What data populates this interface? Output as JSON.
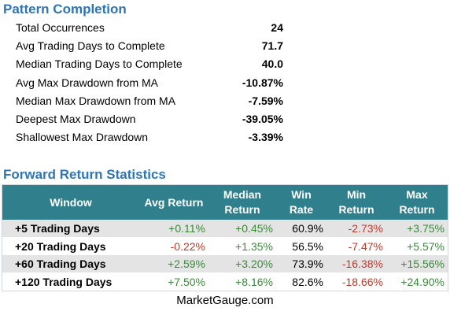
{
  "pattern_completion": {
    "title": "Pattern Completion",
    "rows": [
      {
        "label": "Total Occurrences",
        "value": "24"
      },
      {
        "label": "Avg Trading Days to Complete",
        "value": "71.7"
      },
      {
        "label": "Median Trading Days to Complete",
        "value": "40.0"
      },
      {
        "label": "Avg Max Drawdown from MA",
        "value": "-10.87%"
      },
      {
        "label": "Median Max Drawdown from MA",
        "value": "-7.59%"
      },
      {
        "label": "Deepest Max Drawdown",
        "value": "-39.05%"
      },
      {
        "label": "Shallowest Max Drawdown",
        "value": "-3.39%"
      }
    ]
  },
  "forward_returns": {
    "title": "Forward Return Statistics",
    "headers": {
      "window": "Window",
      "avg": "Avg Return",
      "median": [
        "Median",
        "Return"
      ],
      "win": [
        "Win",
        "Rate"
      ],
      "min": [
        "Min",
        "Return"
      ],
      "max": [
        "Max",
        "Return"
      ]
    },
    "rows": [
      {
        "window": "+5 Trading Days",
        "avg": "+0.11%",
        "median": "+0.45%",
        "win": "60.9%",
        "min": "-2.73%",
        "max": "+3.75%"
      },
      {
        "window": "+20 Trading Days",
        "avg": "-0.22%",
        "median": "+1.35%",
        "win": "56.5%",
        "min": "-7.47%",
        "max": "+5.57%"
      },
      {
        "window": "+60 Trading Days",
        "avg": "+2.59%",
        "median": "+3.20%",
        "win": "73.9%",
        "min": "-16.38%",
        "max": "+15.56%"
      },
      {
        "window": "+120 Trading Days",
        "avg": "+7.50%",
        "median": "+8.16%",
        "win": "82.6%",
        "min": "-18.66%",
        "max": "+24.90%"
      }
    ]
  },
  "footer": "MarketGauge.com",
  "colors": {
    "title": "#2e75b6",
    "header_bg": "#2f7f8c",
    "positive": "#3a8a3a",
    "negative": "#c0392b",
    "shade": "#e4e4e4"
  }
}
